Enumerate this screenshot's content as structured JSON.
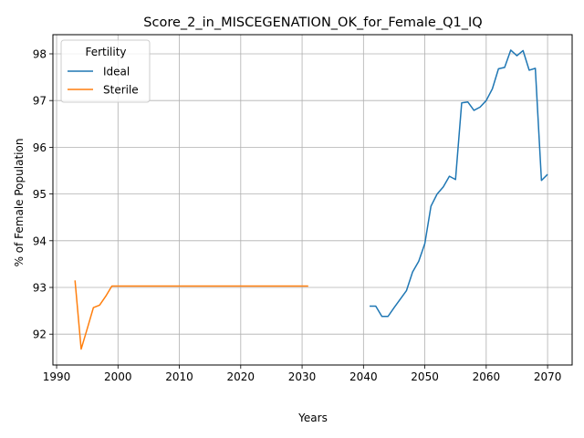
{
  "chart_data": {
    "type": "line",
    "title": "Score_2_in_MISCEGENATION_OK_for_Female_Q1_IQ",
    "xlabel": "Years",
    "ylabel": "% of Female Population",
    "xlim": [
      1989.4,
      2074.0
    ],
    "ylim": [
      91.34,
      98.41
    ],
    "xticks": [
      1990,
      2000,
      2010,
      2020,
      2030,
      2040,
      2050,
      2060,
      2070
    ],
    "yticks": [
      92,
      93,
      94,
      95,
      96,
      97,
      98
    ],
    "grid": true,
    "legend": {
      "title": "Fertility",
      "placement": "top-left"
    },
    "series": [
      {
        "name": "Ideal",
        "color": "#1f77b4",
        "x": [
          2041,
          2042,
          2043,
          2044,
          2045,
          2046,
          2047,
          2048,
          2049,
          2050,
          2051,
          2052,
          2053,
          2054,
          2055,
          2056,
          2057,
          2058,
          2059,
          2060,
          2061,
          2062,
          2063,
          2064,
          2065,
          2066,
          2067,
          2068,
          2069,
          2070
        ],
        "y": [
          92.6,
          92.6,
          92.38,
          92.38,
          92.57,
          92.75,
          92.93,
          93.33,
          93.56,
          93.94,
          94.74,
          95.0,
          95.15,
          95.38,
          95.31,
          96.95,
          96.97,
          96.79,
          96.86,
          97.0,
          97.25,
          97.68,
          97.71,
          98.08,
          97.96,
          98.07,
          97.65,
          97.69,
          95.29,
          95.42
        ]
      },
      {
        "name": "Sterile",
        "color": "#ff7f0e",
        "x": [
          1993,
          1994,
          1995,
          1996,
          1997,
          1998,
          1999,
          2000,
          2005,
          2010,
          2015,
          2020,
          2025,
          2030,
          2031
        ],
        "y": [
          93.15,
          91.68,
          92.12,
          92.57,
          92.62,
          92.81,
          93.03,
          93.03,
          93.03,
          93.03,
          93.03,
          93.03,
          93.03,
          93.03,
          93.03
        ]
      }
    ]
  }
}
